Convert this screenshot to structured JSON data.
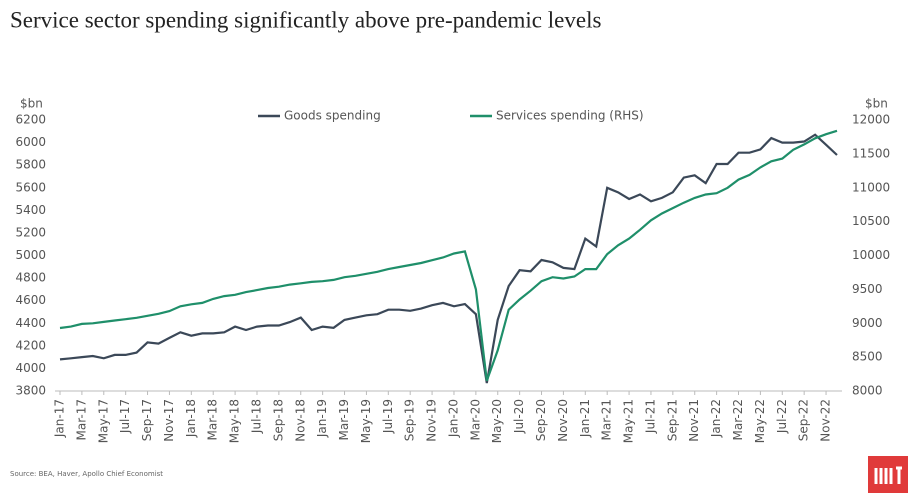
{
  "chart_data": {
    "type": "line",
    "title": "Service sector spending significantly above pre-pandemic levels",
    "y_label": "$bn",
    "y2_label": "$bn",
    "source": "Source: BEA, Haver, Apollo Chief Economist",
    "legend": "top",
    "grid": false,
    "categories": [
      "Jan-17",
      null,
      "Mar-17",
      null,
      "May-17",
      null,
      "Jul-17",
      null,
      "Sep-17",
      null,
      "Nov-17",
      null,
      "Jan-18",
      null,
      "Mar-18",
      null,
      "May-18",
      null,
      "Jul-18",
      null,
      "Sep-18",
      null,
      "Nov-18",
      null,
      "Jan-19",
      null,
      "Mar-19",
      null,
      "May-19",
      null,
      "Jul-19",
      null,
      "Sep-19",
      null,
      "Nov-19",
      null,
      "Jan-20",
      null,
      "Mar-20",
      null,
      "May-20",
      null,
      "Jul-20",
      null,
      "Sep-20",
      null,
      "Nov-20",
      null,
      "Jan-21",
      null,
      "Mar-21",
      null,
      "May-21",
      null,
      "Jul-21",
      null,
      "Sep-21",
      null,
      "Nov-21",
      null,
      "Jan-22",
      null,
      "Mar-22",
      null,
      "May-22",
      null,
      "Jul-22",
      null,
      "Sep-22",
      null,
      "Nov-22",
      null
    ],
    "ylim": [
      3800,
      6200
    ],
    "yticks": [
      3800,
      4000,
      4200,
      4400,
      4600,
      4800,
      5000,
      5200,
      5400,
      5600,
      5800,
      6000,
      6200
    ],
    "y2lim": [
      8000,
      12000
    ],
    "y2ticks": [
      8000,
      8500,
      9000,
      9500,
      10000,
      10500,
      11000,
      11500,
      12000
    ],
    "series": [
      {
        "name": "Goods spending",
        "color": "#3b4858",
        "values": [
          4080,
          4090,
          4100,
          4110,
          4090,
          4120,
          4120,
          4140,
          4230,
          4220,
          4270,
          4320,
          4290,
          4310,
          4310,
          4320,
          4370,
          4340,
          4370,
          4380,
          4380,
          4410,
          4450,
          4340,
          4370,
          4360,
          4430,
          4450,
          4470,
          4480,
          4520,
          4520,
          4510,
          4530,
          4560,
          4580,
          4550,
          4570,
          4480,
          3870,
          4430,
          4730,
          4870,
          4860,
          4960,
          4940,
          4890,
          4880,
          5150,
          5080,
          5600,
          5560,
          5500,
          5540,
          5480,
          5510,
          5560,
          5690,
          5710,
          5640,
          5810,
          5810,
          5910,
          5910,
          5940,
          6040,
          6000,
          6000,
          6010,
          6070,
          5980,
          5890
        ]
      },
      {
        "name": "Services spending (RHS)",
        "color": "#1f8f6a",
        "axis": "y2",
        "values": [
          8930,
          8950,
          8990,
          9000,
          9020,
          9040,
          9060,
          9080,
          9110,
          9140,
          9180,
          9250,
          9280,
          9300,
          9360,
          9400,
          9420,
          9460,
          9490,
          9520,
          9540,
          9570,
          9590,
          9610,
          9620,
          9640,
          9680,
          9700,
          9730,
          9760,
          9800,
          9830,
          9860,
          9890,
          9930,
          9970,
          10030,
          10060,
          9500,
          8150,
          8600,
          9200,
          9350,
          9480,
          9620,
          9680,
          9660,
          9690,
          9800,
          9800,
          10020,
          10150,
          10250,
          10380,
          10520,
          10620,
          10700,
          10780,
          10850,
          10900,
          10920,
          11000,
          11120,
          11190,
          11300,
          11390,
          11430,
          11560,
          11640,
          11730,
          11790,
          11840
        ]
      }
    ]
  }
}
